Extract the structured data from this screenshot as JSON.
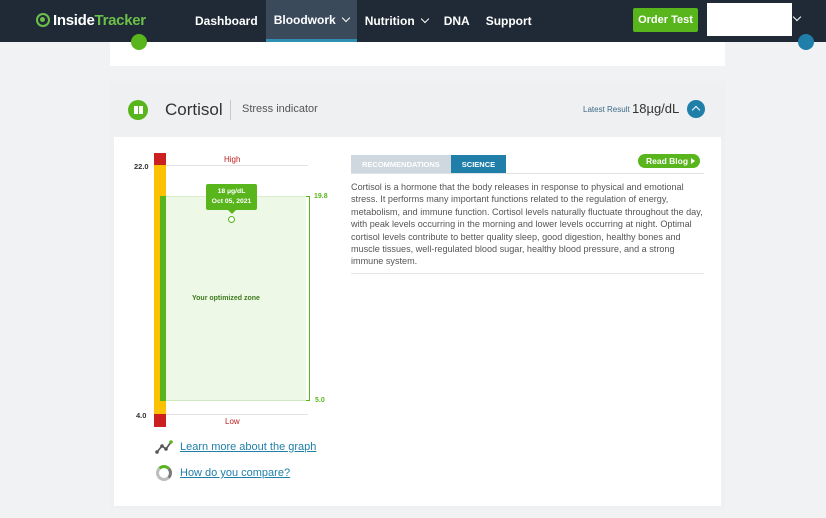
{
  "app": {
    "brand_part1": "Inside",
    "brand_part2": "Tracker"
  },
  "nav": {
    "items": [
      {
        "label": "Dashboard"
      },
      {
        "label": "Bloodwork"
      },
      {
        "label": "Nutrition"
      },
      {
        "label": "DNA"
      },
      {
        "label": "Support"
      }
    ],
    "order_button": "Order Test"
  },
  "marker": {
    "name": "Cortisol",
    "category": "Stress indicator",
    "latest_label": "Latest Result",
    "latest_value": "18µg/dL"
  },
  "graph": {
    "axis_top": "22.0",
    "axis_bottom": "4.0",
    "high_label": "High",
    "low_label": "Low",
    "zone_label": "Your optimized zone",
    "zone_top": "19.8",
    "zone_bottom": "5.0",
    "result_value": "18 µg/dL",
    "result_date": "Oct 05, 2021",
    "link_learn": "Learn more about the graph",
    "link_compare": "How do you compare?"
  },
  "tabs": [
    {
      "label": "RECOMMENDATIONS"
    },
    {
      "label": "SCIENCE"
    }
  ],
  "read_blog": "Read Blog",
  "description": "Cortisol is a hormone that the body releases in response to physical and emotional stress. It performs many important functions related to the regulation of energy, metabolism, and immune function. Cortisol levels naturally fluctuate throughout the day, with peak levels occurring in the morning and lower levels occurring at night. Optimal cortisol levels contribute to better quality sleep, good digestion, healthy bones and muscle tissues, well-regulated blood sugar, healthy blood pressure, and a strong immune system.",
  "colors": {
    "nav_bg": "#1f2a36",
    "accent_green": "#58b61c",
    "accent_blue": "#1f7fa8",
    "high_red": "#cc1f1f",
    "warn_yellow": "#fcc100"
  }
}
